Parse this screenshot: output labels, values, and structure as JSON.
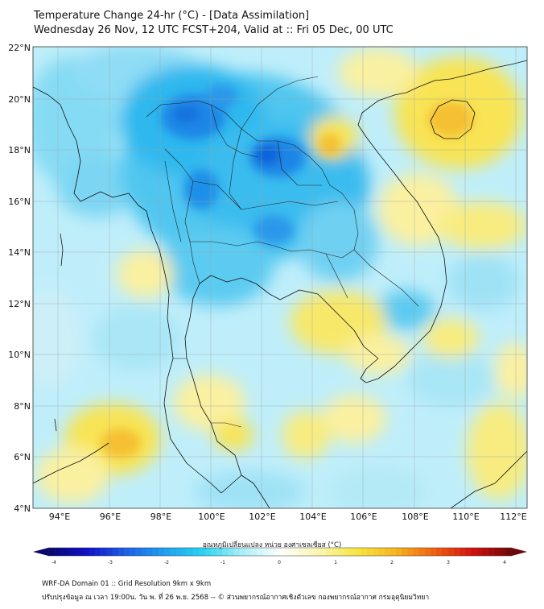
{
  "header": {
    "title": "Temperature Change 24-hr (°C) - [Data Assimilation]",
    "subtitle": "Wednesday 26 Nov, 12 UTC FCST+204, Valid at :: Fri 05 Dec, 00 UTC"
  },
  "map": {
    "lat_labels": [
      "22°N",
      "20°N",
      "18°N",
      "16°N",
      "14°N",
      "12°N",
      "10°N",
      "8°N",
      "6°N",
      "4°N"
    ],
    "lon_labels": [
      "94°E",
      "96°E",
      "98°E",
      "100°E",
      "102°E",
      "104°E",
      "106°E",
      "108°E",
      "110°E",
      "112°E"
    ]
  },
  "colorbar": {
    "label": "อุณหภูมิเปลี่ยนแปลง หน่วย องศาเซลเซียส (°C)",
    "ticks": [
      "-4",
      "-3",
      "-2",
      "-1",
      "0",
      "1",
      "2",
      "3",
      "4"
    ],
    "colors": [
      "#08086e",
      "#1010c8",
      "#1e5fe6",
      "#1ea0f0",
      "#2ad2f2",
      "#a8eef8",
      "#ffffff",
      "#fbf6b0",
      "#f7e640",
      "#f7b420",
      "#f06010",
      "#d21010",
      "#6e0808"
    ]
  },
  "footer": {
    "line1": "WRF-DA Domain 01 :: Grid Resolution 9km x 9km",
    "line2": "ปรับปรุงข้อมูล ณ เวลา 19:00น. วัน พ. ที่ 26 พ.ย. 2568 -- © ส่วนพยากรณ์อากาศเชิงตัวเลข กองพยากรณ์อากาศ กรมอุตุนิยมวิทยา"
  }
}
